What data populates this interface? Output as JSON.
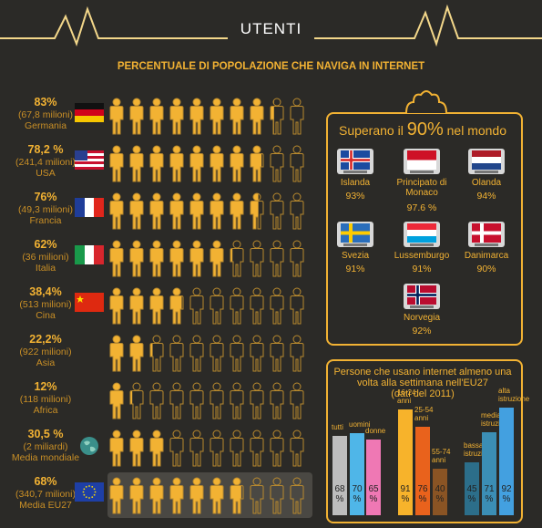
{
  "header": {
    "title": "UTENTI",
    "subtitle": "PERCENTUALE DI POPOLAZIONE CHE NAVIGA IN INTERNET"
  },
  "colors": {
    "background": "#2b2a27",
    "accent": "#f2b233",
    "person_filled": "#f2b233",
    "person_empty_stroke": "#b98a2e",
    "bar_tutti": "#bdbdbd",
    "bar_uomini": "#4fb6e8",
    "bar_donne": "#ef78b4",
    "bar_age1": "#f7b32b",
    "bar_age2": "#e9621c",
    "bar_age3": "#8a5424",
    "bar_edu1": "#2c6e8a",
    "bar_edu2": "#3b8eb5",
    "bar_edu3": "#43a0e0"
  },
  "chart_data": [
    {
      "type": "bar",
      "title": "PERCENTUALE DI POPOLAZIONE CHE NAVIGA IN INTERNET",
      "categories": [
        "Germania",
        "USA",
        "Francia",
        "Italia",
        "Cina",
        "Asia",
        "Africa",
        "Media mondiale",
        "Media EU27"
      ],
      "pct_labels": [
        "83%",
        "78,2 %",
        "76%",
        "62%",
        "38,4%",
        "22,2%",
        "12%",
        "30,5 %",
        "68%"
      ],
      "values": [
        83,
        78.2,
        76,
        62,
        38.4,
        22.2,
        12,
        30.5,
        68
      ],
      "users": [
        "(67,8 milioni)",
        "(241,4 milioni)",
        "(49,3 milioni)",
        "(36 milioni)",
        "(513 milioni)",
        "(922 milioni)",
        "(118 milioni)",
        "(2 miliardi)",
        "(340,7 milioni)"
      ],
      "icons": [
        "flag-germany-icon",
        "flag-usa-icon",
        "flag-france-icon",
        "flag-italy-icon",
        "flag-china-icon",
        "none",
        "none",
        "globe-icon",
        "flag-eu-icon"
      ],
      "people_per_row": 10,
      "ylim": [
        0,
        100
      ]
    },
    {
      "type": "bar",
      "title": "Persone che usano internet almeno una volta alla settimana nell'EU27 (dati del 2011)",
      "categories": [
        "tutti",
        "uomini",
        "donne",
        "16-24 anni",
        "25-54 anni",
        "55-74 anni",
        "bassa istruzione",
        "media istruzione",
        "alta istruzione"
      ],
      "values": [
        68,
        70,
        65,
        91,
        76,
        40,
        45,
        71,
        92
      ],
      "ylim": [
        0,
        100
      ]
    }
  ],
  "panel90": {
    "title_pre": "Superano il",
    "title_pct": "90%",
    "title_post": "nel mondo",
    "countries": [
      {
        "name": "Islanda",
        "value": "93%",
        "icon": "flag-iceland-icon"
      },
      {
        "name": "Principato di Monaco",
        "value": "97.6 %",
        "icon": "flag-monaco-icon"
      },
      {
        "name": "Olanda",
        "value": "94%",
        "icon": "flag-netherlands-icon"
      },
      {
        "name": "Svezia",
        "value": "91%",
        "icon": "flag-sweden-icon"
      },
      {
        "name": "Lussemburgo",
        "value": "91%",
        "icon": "flag-luxembourg-icon"
      },
      {
        "name": "Danimarca",
        "value": "90%",
        "icon": "flag-denmark-icon"
      },
      {
        "name": "Norvegia",
        "value": "92%",
        "icon": "flag-norway-icon"
      }
    ]
  },
  "panel_eu": {
    "title_line1": "Persone che usano internet almeno una",
    "title_line2": "volta alla settimana nell'EU27",
    "title_line3": "(dati del 2011)",
    "bar_labels": [
      "tutti",
      "uomini",
      "donne",
      "16-24 anni",
      "25-54 anni",
      "55-74 anni",
      "bassa istruzione",
      "media istruzione",
      "alta istruzione"
    ],
    "percent_sign": "%"
  }
}
